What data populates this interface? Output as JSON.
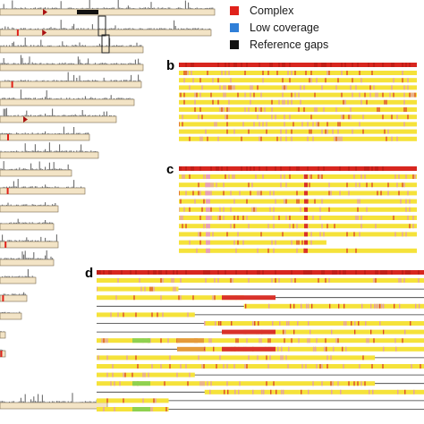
{
  "legend": {
    "items": [
      {
        "label": "Complex",
        "color": "#e0221b"
      },
      {
        "label": "Low coverage",
        "color": "#2f7fd8"
      },
      {
        "label": "Reference gaps",
        "color": "#111111"
      }
    ]
  },
  "panels": {
    "b": {
      "letter": "b"
    },
    "c": {
      "letter": "c"
    },
    "d": {
      "letter": "d"
    }
  },
  "colors": {
    "track_fill": "#f3e4c6",
    "track_border": "#7a6a50",
    "coverage_peaks": "#6d6d6d",
    "block_base": "#f5e23a",
    "block_red": "#d9322a",
    "block_pink": "#e39bb4",
    "block_orange": "#e59a3a",
    "block_green": "#8fd14f",
    "header_bar": "#d8261f"
  }
}
